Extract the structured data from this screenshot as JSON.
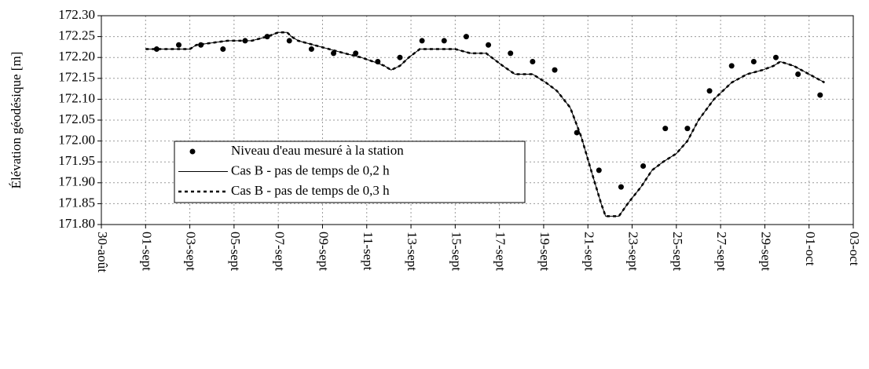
{
  "chart_data": {
    "type": "line",
    "y_label": "Élévation géodésique [m]",
    "xlim": [
      0,
      34
    ],
    "xticks": [
      {
        "value": 0,
        "label": "30-août"
      },
      {
        "value": 2,
        "label": "01-sept"
      },
      {
        "value": 4,
        "label": "03-sept"
      },
      {
        "value": 6,
        "label": "05-sept"
      },
      {
        "value": 8,
        "label": "07-sept"
      },
      {
        "value": 10,
        "label": "09-sept"
      },
      {
        "value": 12,
        "label": "11-sept"
      },
      {
        "value": 14,
        "label": "13-sept"
      },
      {
        "value": 16,
        "label": "15-sept"
      },
      {
        "value": 18,
        "label": "17-sept"
      },
      {
        "value": 20,
        "label": "19-sept"
      },
      {
        "value": 22,
        "label": "21-sept"
      },
      {
        "value": 24,
        "label": "23-sept"
      },
      {
        "value": 26,
        "label": "25-sept"
      },
      {
        "value": 28,
        "label": "27-sept"
      },
      {
        "value": 30,
        "label": "29-sept"
      },
      {
        "value": 32,
        "label": "01-oct"
      },
      {
        "value": 34,
        "label": "03-oct"
      }
    ],
    "ylim": [
      171.8,
      172.3
    ],
    "yticks": [
      {
        "value": 171.8,
        "label": "171.80"
      },
      {
        "value": 171.85,
        "label": "171.85"
      },
      {
        "value": 171.9,
        "label": "171.90"
      },
      {
        "value": 171.95,
        "label": "171.95"
      },
      {
        "value": 172.0,
        "label": "172.00"
      },
      {
        "value": 172.05,
        "label": "172.05"
      },
      {
        "value": 172.1,
        "label": "172.10"
      },
      {
        "value": 172.15,
        "label": "172.15"
      },
      {
        "value": 172.2,
        "label": "172.20"
      },
      {
        "value": 172.25,
        "label": "172.25"
      },
      {
        "value": 172.3,
        "label": "172.30"
      }
    ],
    "grid": true,
    "series": [
      {
        "name": "Niveau d'eau mesuré à la station",
        "style": "markers",
        "color": "#000000",
        "x": [
          2.5,
          3.5,
          4.5,
          5.5,
          6.5,
          7.5,
          8.5,
          9.5,
          10.5,
          11.5,
          12.5,
          13.5,
          14.5,
          15.5,
          16.5,
          17.5,
          18.5,
          19.5,
          20.5,
          21.5,
          22.5,
          23.5,
          24.5,
          25.5,
          26.5,
          27.5,
          28.5,
          29.5,
          30.5,
          31.5,
          32.5
        ],
        "values": [
          172.22,
          172.23,
          172.23,
          172.22,
          172.24,
          172.25,
          172.24,
          172.22,
          172.21,
          172.21,
          172.19,
          172.2,
          172.24,
          172.24,
          172.25,
          172.23,
          172.21,
          172.19,
          172.17,
          172.02,
          171.93,
          171.89,
          171.94,
          172.03,
          172.03,
          172.12,
          172.18,
          172.19,
          172.2,
          172.16,
          172.11
        ]
      },
      {
        "name": "Cas B - pas de temps de 0,2 h",
        "style": "solid",
        "color": "#000000",
        "x": [
          2,
          4,
          4.3,
          5.7,
          6.8,
          7.5,
          8,
          8.4,
          8.6,
          8.9,
          9.6,
          10.3,
          11,
          11.75,
          12.3,
          12.8,
          13.1,
          13.5,
          13.9,
          14.4,
          16,
          16.7,
          17.4,
          18.15,
          18.7,
          19.5,
          20.1,
          20.6,
          21.2,
          21.7,
          22.2,
          22.6,
          22.8,
          23.4,
          23.8,
          24.4,
          24.9,
          25.4,
          26,
          26.5,
          27,
          27.7,
          28.5,
          29.2,
          29.9,
          30.4,
          30.7,
          31.3,
          32,
          32.7
        ],
        "values": [
          172.22,
          172.22,
          172.23,
          172.24,
          172.24,
          172.25,
          172.26,
          172.26,
          172.25,
          172.24,
          172.23,
          172.22,
          172.21,
          172.2,
          172.19,
          172.18,
          172.17,
          172.18,
          172.2,
          172.22,
          172.22,
          172.21,
          172.21,
          172.18,
          172.16,
          172.16,
          172.14,
          172.12,
          172.08,
          172.01,
          171.92,
          171.85,
          171.82,
          171.82,
          171.85,
          171.89,
          171.93,
          171.95,
          171.97,
          172.0,
          172.05,
          172.1,
          172.14,
          172.16,
          172.17,
          172.18,
          172.19,
          172.18,
          172.16,
          172.14
        ]
      },
      {
        "name": "Cas B - pas de temps de 0,3 h",
        "style": "dashed",
        "color": "#000000",
        "x": [
          2,
          4,
          4.3,
          5.7,
          6.8,
          7.5,
          8,
          8.4,
          8.6,
          8.9,
          9.6,
          10.3,
          11,
          11.75,
          12.3,
          12.8,
          13.1,
          13.5,
          13.9,
          14.4,
          16,
          16.7,
          17.4,
          18.15,
          18.7,
          19.5,
          20.1,
          20.6,
          21.2,
          21.7,
          22.2,
          22.6,
          22.8,
          23.4,
          23.8,
          24.4,
          24.9,
          25.4,
          26,
          26.5,
          27,
          27.7,
          28.5,
          29.2,
          29.9,
          30.4,
          30.7,
          31.3,
          32,
          32.7
        ],
        "values": [
          172.22,
          172.22,
          172.23,
          172.24,
          172.24,
          172.25,
          172.26,
          172.26,
          172.25,
          172.24,
          172.23,
          172.22,
          172.21,
          172.2,
          172.19,
          172.18,
          172.17,
          172.18,
          172.2,
          172.22,
          172.22,
          172.21,
          172.21,
          172.18,
          172.16,
          172.16,
          172.14,
          172.12,
          172.08,
          172.01,
          171.92,
          171.85,
          171.82,
          171.82,
          171.85,
          171.89,
          171.93,
          171.95,
          171.97,
          172.0,
          172.05,
          172.1,
          172.14,
          172.16,
          172.17,
          172.18,
          172.19,
          172.18,
          172.16,
          172.14
        ]
      }
    ]
  }
}
